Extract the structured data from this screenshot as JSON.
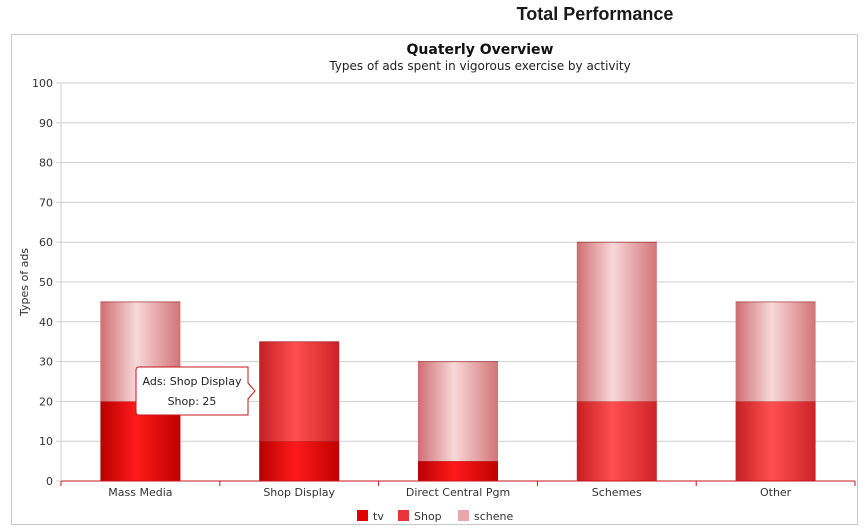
{
  "page": {
    "title": "Total Performance"
  },
  "chart_data": {
    "type": "bar",
    "stacked": true,
    "title": "Quaterly Overview",
    "subtitle": "Types of ads spent in vigorous exercise by activity",
    "xlabel": "",
    "ylabel": "Types of ads",
    "ylim": [
      0,
      100
    ],
    "yticks": [
      0,
      10,
      20,
      30,
      40,
      50,
      60,
      70,
      80,
      90,
      100
    ],
    "grid": true,
    "legend_position": "bottom",
    "categories": [
      "Mass Media",
      "Shop Display",
      "Direct Central Pgm",
      "Schemes",
      "Other"
    ],
    "series": [
      {
        "name": "tv",
        "values": [
          20,
          10,
          5,
          0,
          0
        ]
      },
      {
        "name": "Shop",
        "values": [
          0,
          25,
          0,
          20,
          20
        ]
      },
      {
        "name": "schene",
        "values": [
          25,
          0,
          25,
          40,
          25
        ]
      }
    ],
    "colors": {
      "tv": "#e00000",
      "Shop": "#e8343a",
      "schene": "#e8a8aa"
    },
    "tooltip": {
      "line1": "Ads: Shop Display",
      "line2": "Shop: 25"
    }
  }
}
